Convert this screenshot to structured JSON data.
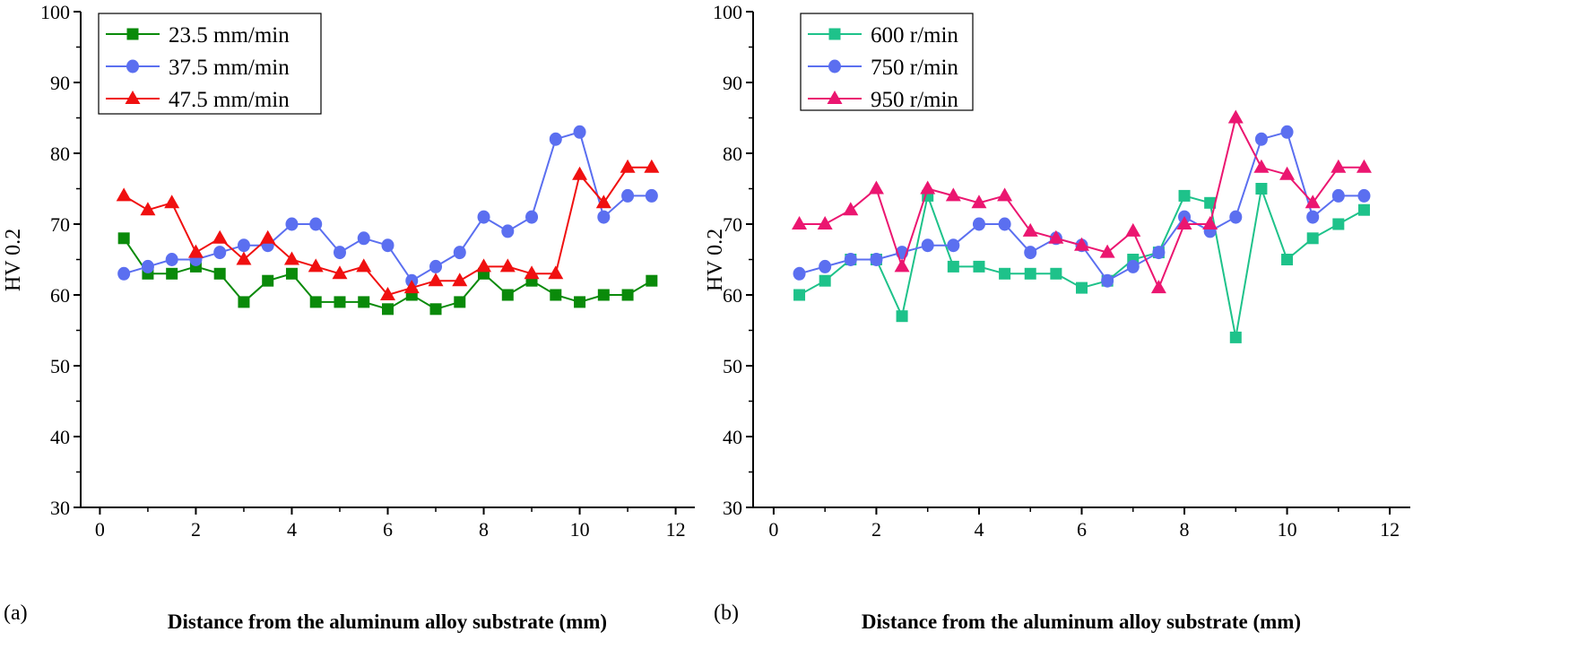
{
  "chart_data": [
    {
      "type": "line",
      "panel_label": "(a)",
      "xlabel": "Distance from the aluminum alloy substrate (mm)",
      "ylabel": "HV 0.2",
      "xlim": [
        -0.4,
        12.4
      ],
      "ylim": [
        30,
        100
      ],
      "xticks": [
        0,
        2,
        4,
        6,
        8,
        10,
        12
      ],
      "yticks": [
        30,
        40,
        50,
        60,
        70,
        80,
        90,
        100
      ],
      "grid": false,
      "legend_placement": "top-left",
      "x": [
        0.5,
        1,
        1.5,
        2,
        2.5,
        3,
        3.5,
        4,
        4.5,
        5,
        5.5,
        6,
        6.5,
        7,
        7.5,
        8,
        8.5,
        9,
        9.5,
        10,
        10.5,
        11,
        11.5
      ],
      "series": [
        {
          "name": "23.5 mm/min",
          "color": "#0a8a0a",
          "marker": "square",
          "values": [
            68,
            63,
            63,
            64,
            63,
            59,
            62,
            63,
            59,
            59,
            59,
            58,
            60,
            58,
            59,
            63,
            60,
            62,
            60,
            59,
            60,
            60,
            62
          ]
        },
        {
          "name": "37.5 mm/min",
          "color": "#5b6ff0",
          "marker": "circle",
          "values": [
            63,
            64,
            65,
            65,
            66,
            67,
            67,
            70,
            70,
            66,
            68,
            67,
            62,
            64,
            66,
            71,
            69,
            71,
            82,
            83,
            71,
            74,
            74
          ]
        },
        {
          "name": "47.5 mm/min",
          "color": "#f01010",
          "marker": "triangle",
          "values": [
            74,
            72,
            73,
            66,
            68,
            65,
            68,
            65,
            64,
            63,
            64,
            60,
            61,
            62,
            62,
            64,
            64,
            63,
            63,
            77,
            73,
            78,
            78
          ]
        }
      ]
    },
    {
      "type": "line",
      "panel_label": "(b)",
      "xlabel": "Distance from the aluminum alloy substrate (mm)",
      "ylabel": "HV 0.2",
      "xlim": [
        -0.4,
        12.4
      ],
      "ylim": [
        30,
        100
      ],
      "xticks": [
        0,
        2,
        4,
        6,
        8,
        10,
        12
      ],
      "yticks": [
        30,
        40,
        50,
        60,
        70,
        80,
        90,
        100
      ],
      "grid": false,
      "legend_placement": "top-left",
      "x": [
        0.5,
        1,
        1.5,
        2,
        2.5,
        3,
        3.5,
        4,
        4.5,
        5,
        5.5,
        6,
        6.5,
        7,
        7.5,
        8,
        8.5,
        9,
        9.5,
        10,
        10.5,
        11,
        11.5
      ],
      "series": [
        {
          "name": "600 r/min",
          "color": "#1ec28a",
          "marker": "square",
          "values": [
            60,
            62,
            65,
            65,
            57,
            74,
            64,
            64,
            63,
            63,
            63,
            61,
            62,
            65,
            66,
            74,
            73,
            54,
            75,
            65,
            68,
            70,
            72
          ]
        },
        {
          "name": "750 r/min",
          "color": "#5b6ff0",
          "marker": "circle",
          "values": [
            63,
            64,
            65,
            65,
            66,
            67,
            67,
            70,
            70,
            66,
            68,
            67,
            62,
            64,
            66,
            71,
            69,
            71,
            82,
            83,
            71,
            74,
            74
          ]
        },
        {
          "name": "950 r/min",
          "color": "#eb1670",
          "marker": "triangle",
          "values": [
            70,
            70,
            72,
            75,
            64,
            75,
            74,
            73,
            74,
            69,
            68,
            67,
            66,
            69,
            61,
            70,
            70,
            85,
            78,
            77,
            73,
            78,
            78
          ]
        }
      ]
    }
  ]
}
